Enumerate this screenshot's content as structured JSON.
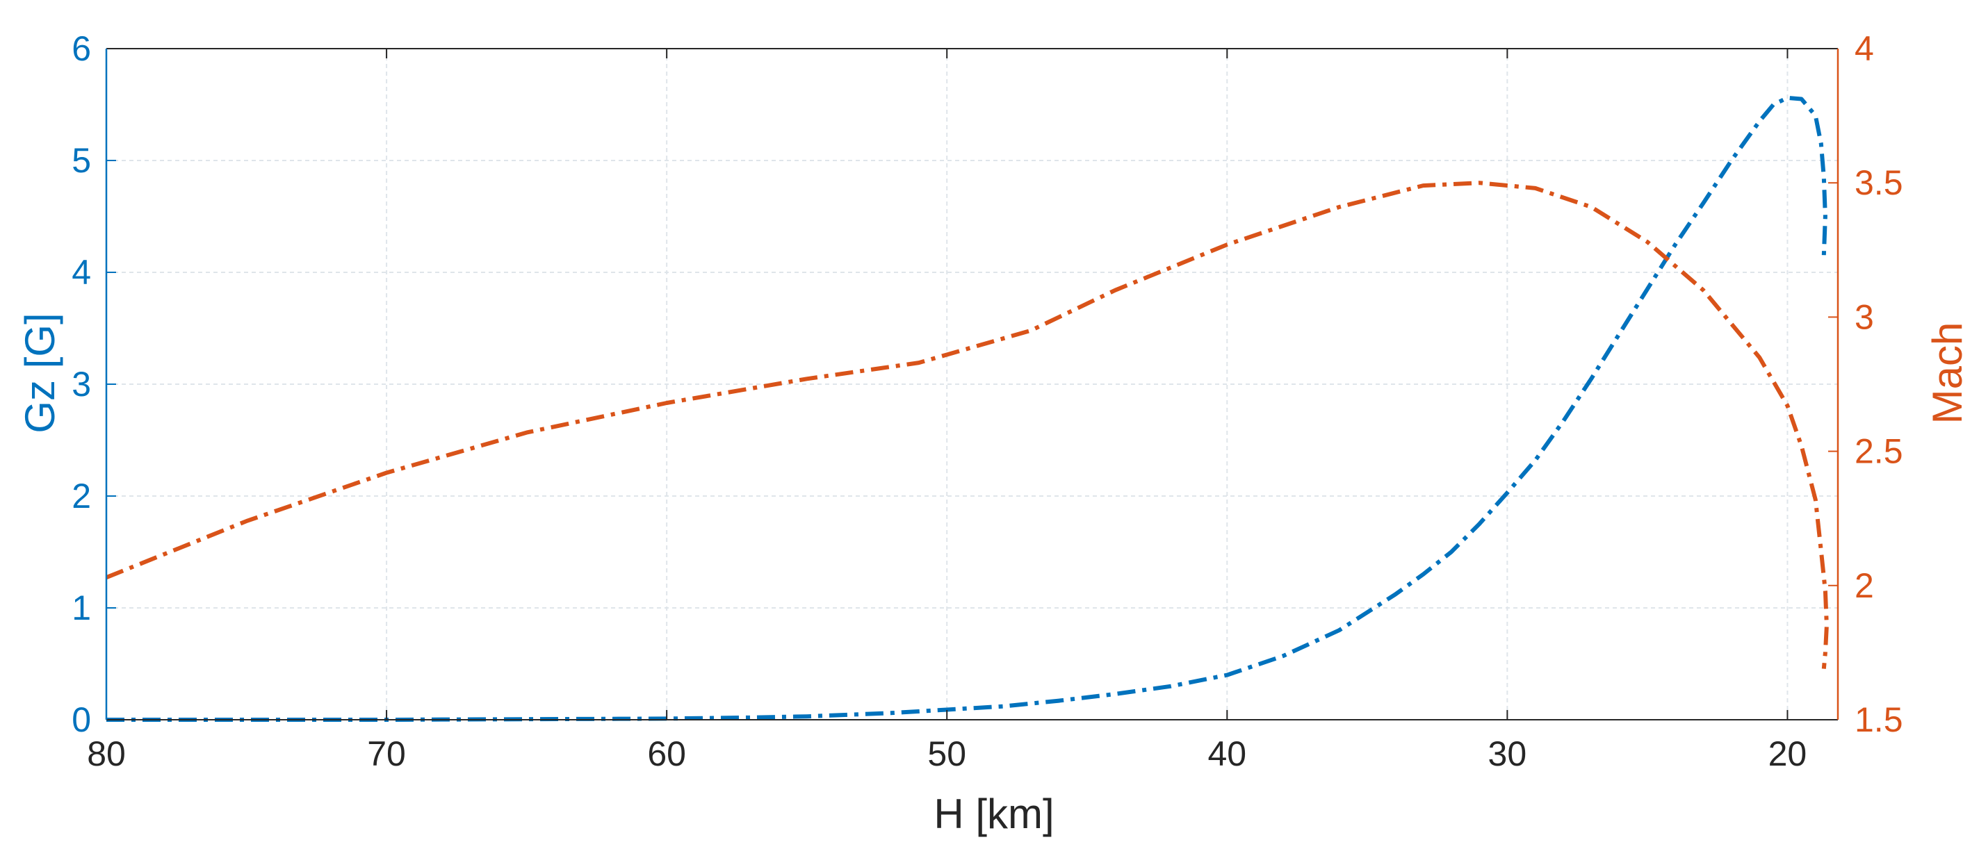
{
  "chart_data": {
    "type": "line",
    "title": "",
    "xlabel": "H [km]",
    "ylabel_left": "Gz [G]",
    "ylabel_right": "Mach",
    "x_direction": "reversed",
    "xlim": [
      80,
      18.2
    ],
    "ylim_left": [
      0,
      6
    ],
    "ylim_right": [
      1.5,
      4
    ],
    "x_ticks": [
      "80",
      "70",
      "60",
      "50",
      "40",
      "30",
      "20"
    ],
    "y_left_ticks": [
      "0",
      "1",
      "2",
      "3",
      "4",
      "5",
      "6"
    ],
    "y_right_ticks": [
      "1.5",
      "2",
      "2.5",
      "3",
      "3.5",
      "4"
    ],
    "grid": true,
    "line_style": "dash-dot",
    "colors": {
      "left_axis": "#0072BD",
      "right_axis": "#D95319",
      "box": "#262626",
      "grid": "#dfe5ea"
    },
    "series": [
      {
        "axis": "left",
        "color": "#0072BD",
        "x": [
          80,
          75,
          70,
          65,
          60,
          57,
          55,
          52,
          50,
          48,
          46,
          44,
          42,
          40,
          38,
          36,
          34,
          33,
          32,
          31,
          30,
          29,
          28,
          27,
          26,
          25,
          24,
          23,
          22,
          21,
          20.5,
          20,
          19.5,
          19,
          18.8,
          18.7,
          18.65,
          18.7
        ],
        "y": [
          0,
          0,
          0,
          0.005,
          0.01,
          0.02,
          0.03,
          0.06,
          0.09,
          0.12,
          0.17,
          0.23,
          0.3,
          0.4,
          0.57,
          0.8,
          1.12,
          1.3,
          1.5,
          1.75,
          2.03,
          2.32,
          2.67,
          3.05,
          3.45,
          3.85,
          4.25,
          4.62,
          5.0,
          5.35,
          5.5,
          5.56,
          5.55,
          5.4,
          5.15,
          4.85,
          4.5,
          4.15
        ]
      },
      {
        "axis": "right",
        "color": "#D95319",
        "x": [
          80,
          75,
          70,
          65,
          60,
          55,
          51,
          47,
          44,
          40,
          36,
          33,
          31,
          29,
          27,
          25,
          23,
          21,
          20,
          19.5,
          19,
          18.8,
          18.65,
          18.6,
          18.65,
          18.7
        ],
        "y": [
          2.03,
          2.24,
          2.42,
          2.57,
          2.68,
          2.77,
          2.83,
          2.95,
          3.1,
          3.27,
          3.41,
          3.49,
          3.5,
          3.48,
          3.41,
          3.28,
          3.1,
          2.85,
          2.67,
          2.52,
          2.32,
          2.13,
          1.98,
          1.85,
          1.75,
          1.69
        ]
      }
    ]
  }
}
